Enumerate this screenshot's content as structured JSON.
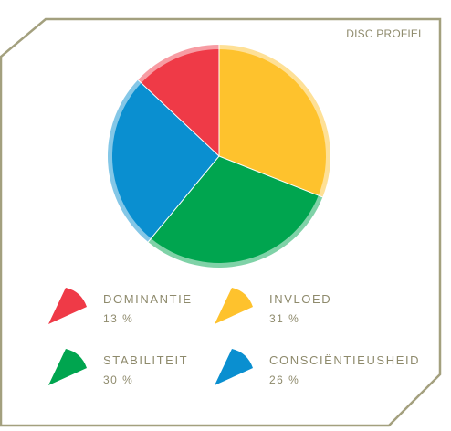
{
  "chart_data": {
    "type": "pie",
    "title": "DISC PROFIEL",
    "categories": [
      "DOMINANTIE",
      "INVLOED",
      "STABILITEIT",
      "CONSCIËNTIEUSHEID"
    ],
    "values": [
      13,
      31,
      30,
      26
    ],
    "value_labels": [
      "13 %",
      "31 %",
      "30 %",
      "26 %"
    ],
    "colors": [
      "#ef3a47",
      "#fec22d",
      "#00a54f",
      "#0a8fd0"
    ],
    "legend_placement": "bottom"
  }
}
